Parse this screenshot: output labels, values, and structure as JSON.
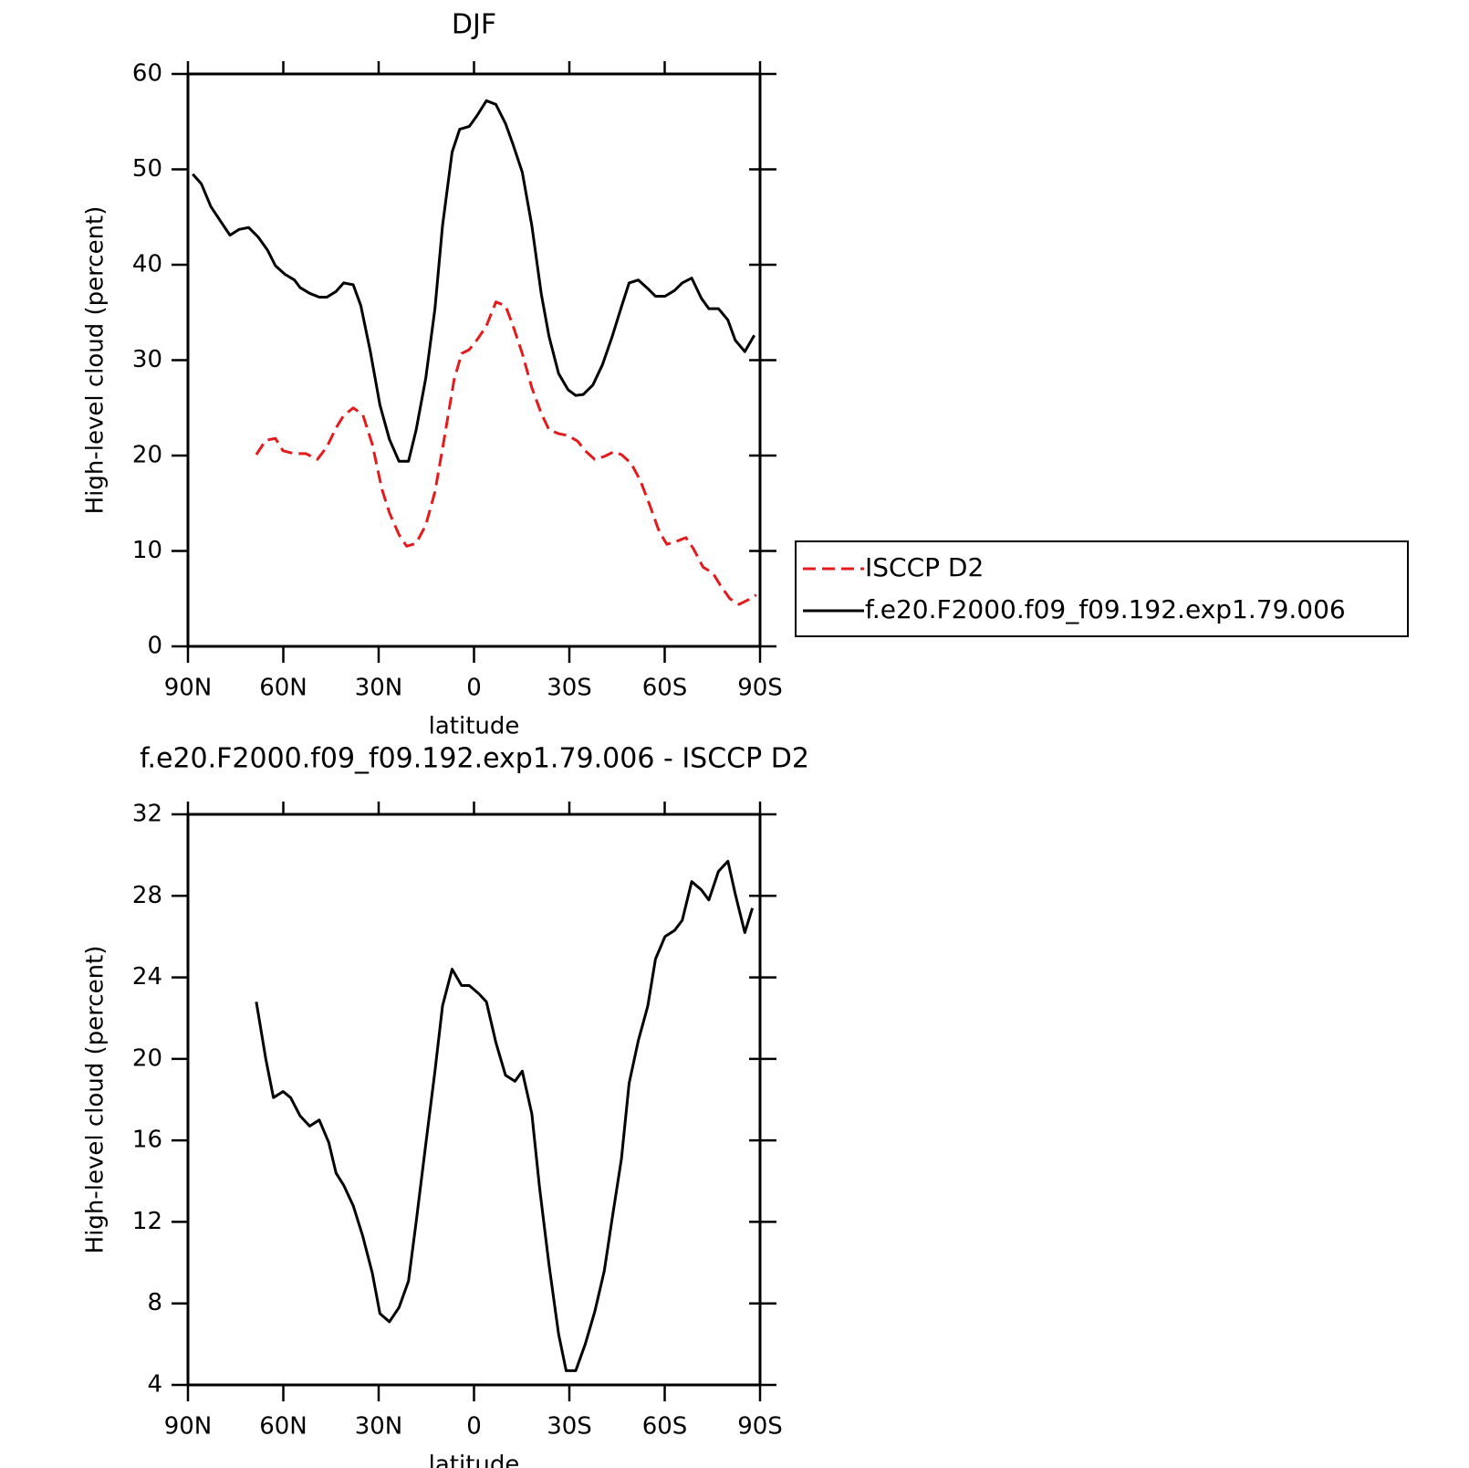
{
  "chart_data": [
    {
      "type": "line",
      "title": "DJF",
      "xlabel": "latitude",
      "ylabel": "High-level cloud (percent)",
      "xlim": [
        90,
        -90
      ],
      "xticks": [
        {
          "value": 90,
          "label": "90N"
        },
        {
          "value": 60,
          "label": "60N"
        },
        {
          "value": 30,
          "label": "30N"
        },
        0,
        {
          "value": -30,
          "label": "30S"
        },
        {
          "value": -60,
          "label": "60S"
        },
        {
          "value": -90,
          "label": "90S"
        }
      ],
      "ylim": [
        0,
        60
      ],
      "yticks": [
        0,
        10,
        20,
        30,
        40,
        50,
        60
      ],
      "series": [
        {
          "name": "ISCCP D2",
          "color": "#e41a1c",
          "linestyle": "dashed",
          "x": [
            68.5,
            65.5,
            62.5,
            60.1,
            56.5,
            52.9,
            49.3,
            46.3,
            43.4,
            41.0,
            38.0,
            35.0,
            32.0,
            29.0,
            26.6,
            23.6,
            21.2,
            18.2,
            15.2,
            12.3,
            9.3,
            6.3,
            3.9,
            1.5,
            -0.9,
            -3.9,
            -6.9,
            -9.9,
            -12.3,
            -15.2,
            -18.2,
            -21.2,
            -23.6,
            -26.6,
            -29.6,
            -32.6,
            -35.0,
            -38.0,
            -41.0,
            -44.0,
            -46.4,
            -49.4,
            -52.3,
            -55.3,
            -58.3,
            -60.7,
            -63.7,
            -66.7,
            -69.1,
            -72.1,
            -75.1,
            -77.5,
            -80.5,
            -83.4,
            -86.4,
            -88.8
          ],
          "values": [
            20.1,
            21.6,
            21.8,
            20.5,
            20.2,
            20.2,
            19.6,
            20.9,
            22.9,
            24.2,
            25.0,
            24.3,
            21.2,
            16.5,
            14.0,
            11.7,
            10.5,
            10.8,
            12.7,
            16.2,
            21.9,
            27.9,
            30.7,
            31.1,
            32.1,
            33.6,
            36.1,
            35.7,
            33.6,
            30.7,
            27.1,
            24.4,
            22.7,
            22.3,
            22.1,
            21.5,
            20.5,
            19.6,
            19.9,
            20.4,
            20.1,
            19.2,
            17.4,
            14.8,
            12.0,
            10.7,
            11.0,
            11.4,
            10.2,
            8.3,
            7.7,
            6.4,
            5.0,
            4.4,
            4.9,
            5.4
          ]
        },
        {
          "name": "f.e20.F2000.f09_f09.192.exp1.79.006",
          "color": "#000000",
          "linestyle": "solid",
          "x": [
            88.5,
            85.8,
            82.8,
            79.8,
            76.8,
            73.9,
            70.9,
            67.9,
            64.9,
            62.5,
            59.5,
            56.5,
            54.7,
            51.7,
            48.7,
            46.3,
            43.4,
            41.0,
            38.0,
            35.6,
            32.6,
            29.6,
            26.6,
            23.6,
            20.6,
            18.2,
            15.2,
            12.3,
            9.9,
            6.9,
            4.5,
            1.5,
            -0.9,
            -3.9,
            -6.9,
            -9.9,
            -12.3,
            -15.2,
            -18.2,
            -21.2,
            -23.6,
            -26.6,
            -29.6,
            -32.0,
            -34.4,
            -37.4,
            -40.4,
            -43.4,
            -46.4,
            -48.8,
            -51.7,
            -54.7,
            -57.1,
            -60.1,
            -63.1,
            -65.5,
            -68.5,
            -71.5,
            -73.9,
            -76.9,
            -79.9,
            -82.2,
            -85.2,
            -88.2
          ],
          "values": [
            49.5,
            48.5,
            46.1,
            44.6,
            43.1,
            43.7,
            43.9,
            42.9,
            41.5,
            39.9,
            39.0,
            38.4,
            37.6,
            37.0,
            36.6,
            36.6,
            37.2,
            38.1,
            37.9,
            35.7,
            30.9,
            25.3,
            21.7,
            19.4,
            19.4,
            22.7,
            28.1,
            35.4,
            44.1,
            51.8,
            54.2,
            54.5,
            55.6,
            57.2,
            56.8,
            54.8,
            52.6,
            49.7,
            44.1,
            36.9,
            32.5,
            28.6,
            26.9,
            26.3,
            26.4,
            27.4,
            29.5,
            32.4,
            35.6,
            38.1,
            38.4,
            37.5,
            36.7,
            36.7,
            37.3,
            38.1,
            38.6,
            36.5,
            35.4,
            35.4,
            34.2,
            32.1,
            30.9,
            32.6
          ]
        }
      ]
    },
    {
      "type": "line",
      "title": "f.e20.F2000.f09_f09.192.exp1.79.006 - ISCCP D2",
      "xlabel": "latitude",
      "ylabel": "High-level cloud (percent)",
      "xlim": [
        90,
        -90
      ],
      "xticks": [
        {
          "value": 90,
          "label": "90N"
        },
        {
          "value": 60,
          "label": "60N"
        },
        {
          "value": 30,
          "label": "30N"
        },
        0,
        {
          "value": -30,
          "label": "30S"
        },
        {
          "value": -60,
          "label": "60S"
        },
        {
          "value": -90,
          "label": "90S"
        }
      ],
      "ylim": [
        4,
        32
      ],
      "yticks": [
        4,
        8,
        12,
        16,
        20,
        24,
        28,
        32
      ],
      "series": [
        {
          "color": "#000000",
          "linestyle": "solid",
          "x": [
            68.5,
            65.5,
            63.1,
            60.1,
            57.7,
            54.7,
            51.7,
            48.7,
            45.7,
            43.4,
            41.0,
            38.0,
            35.0,
            32.0,
            29.6,
            26.6,
            23.6,
            20.6,
            18.2,
            15.2,
            12.3,
            9.9,
            6.9,
            3.9,
            1.5,
            -1.5,
            -3.9,
            -6.9,
            -9.9,
            -12.9,
            -15.2,
            -18.2,
            -20.6,
            -23.6,
            -26.6,
            -29.0,
            -32.0,
            -35.0,
            -38.0,
            -41.0,
            -43.4,
            -46.4,
            -48.8,
            -51.7,
            -54.7,
            -57.1,
            -60.1,
            -63.1,
            -65.5,
            -68.5,
            -71.5,
            -73.9,
            -76.9,
            -79.9,
            -82.2,
            -85.2,
            -87.6
          ],
          "values": [
            22.8,
            20.0,
            18.1,
            18.4,
            18.1,
            17.2,
            16.7,
            17.0,
            15.9,
            14.4,
            13.8,
            12.8,
            11.3,
            9.5,
            7.5,
            7.1,
            7.8,
            9.1,
            12.0,
            15.8,
            19.4,
            22.6,
            24.4,
            23.6,
            23.6,
            23.2,
            22.8,
            20.8,
            19.2,
            18.9,
            19.4,
            17.3,
            13.7,
            9.9,
            6.5,
            4.7,
            4.7,
            6.0,
            7.6,
            9.6,
            12.1,
            15.1,
            18.8,
            20.9,
            22.6,
            24.9,
            26.0,
            26.3,
            26.8,
            28.7,
            28.3,
            27.8,
            29.2,
            29.7,
            28.1,
            26.2,
            27.4
          ]
        }
      ]
    }
  ]
}
